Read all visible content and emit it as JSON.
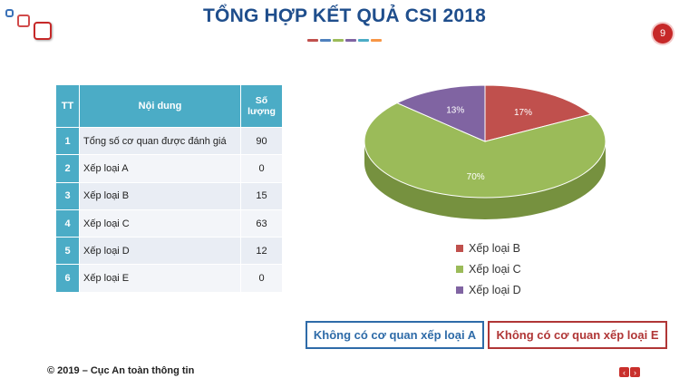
{
  "slide": {
    "title": "TỔNG HỢP KẾT QUẢ CSI 2018",
    "page_number": "9",
    "footer": "© 2019 – Cục An toàn thông tin",
    "title_bar_colors": [
      "#c0504d",
      "#4f81bd",
      "#9bbb59",
      "#8064a2",
      "#4bacc6",
      "#f79646"
    ]
  },
  "table": {
    "headers": [
      "TT",
      "Nội dung",
      "Số lượng"
    ],
    "rows": [
      {
        "tt": "1",
        "content": "Tổng số cơ quan được đánh giá",
        "count": "90"
      },
      {
        "tt": "2",
        "content": "Xếp loại A",
        "count": "0"
      },
      {
        "tt": "3",
        "content": "Xếp loại B",
        "count": "15"
      },
      {
        "tt": "4",
        "content": "Xếp loại C",
        "count": "63"
      },
      {
        "tt": "5",
        "content": "Xếp loại D",
        "count": "12"
      },
      {
        "tt": "6",
        "content": "Xếp loại E",
        "count": "0"
      }
    ]
  },
  "chart_data": {
    "type": "pie",
    "categories": [
      "Xếp loại B",
      "Xếp loại C",
      "Xếp loại D"
    ],
    "values": [
      17,
      70,
      13
    ],
    "labels": [
      "17%",
      "70%",
      "13%"
    ],
    "colors": [
      "#c0504d",
      "#9bbb59",
      "#8064a2"
    ],
    "side_colors": [
      "#923a38",
      "#76913f",
      "#5f4a7a"
    ],
    "style": "3d",
    "legend_position": "bottom"
  },
  "notes": {
    "no_a": "Không có cơ quan xếp loại A",
    "no_e": "Không có cơ quan xếp loại E"
  },
  "nav": {
    "prev_icon": "chevron-left-icon",
    "next_icon": "chevron-right-icon",
    "prev": "‹",
    "next": "›"
  }
}
